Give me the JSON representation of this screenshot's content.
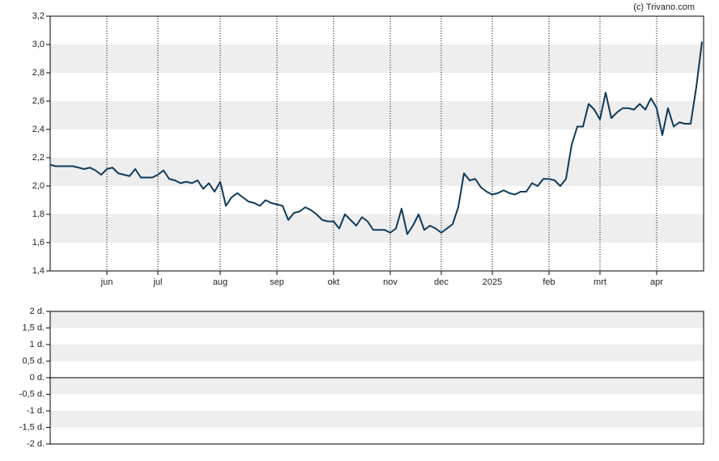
{
  "chart_data": [
    {
      "type": "line",
      "source": "(c) Trivano.com",
      "categories": [
        null,
        null,
        null,
        null,
        null,
        null,
        null,
        null,
        null,
        null,
        "jun",
        null,
        null,
        null,
        null,
        null,
        null,
        null,
        null,
        "jul",
        null,
        null,
        null,
        null,
        null,
        null,
        null,
        null,
        null,
        null,
        "aug",
        null,
        null,
        null,
        null,
        null,
        null,
        null,
        null,
        null,
        "sep",
        null,
        null,
        null,
        null,
        null,
        null,
        null,
        null,
        null,
        "okt",
        null,
        null,
        null,
        null,
        null,
        null,
        null,
        null,
        null,
        "nov",
        null,
        null,
        null,
        null,
        null,
        null,
        null,
        null,
        "dec",
        null,
        null,
        null,
        null,
        null,
        null,
        null,
        null,
        "2025",
        null,
        null,
        null,
        null,
        null,
        null,
        null,
        null,
        null,
        "feb",
        null,
        null,
        null,
        null,
        null,
        null,
        null,
        null,
        "mrt",
        null,
        null,
        null,
        null,
        null,
        null,
        null,
        null,
        null,
        "apr",
        null,
        null,
        null,
        null,
        null,
        null,
        null,
        null
      ],
      "series": [
        {
          "color": "#0f3a5a",
          "values": [
            2.15,
            2.14,
            2.14,
            2.14,
            2.14,
            2.13,
            2.12,
            2.13,
            2.11,
            2.08,
            2.12,
            2.13,
            2.09,
            2.08,
            2.07,
            2.12,
            2.06,
            2.06,
            2.06,
            2.08,
            2.11,
            2.05,
            2.04,
            2.02,
            2.03,
            2.02,
            2.04,
            1.98,
            2.02,
            1.96,
            2.03,
            1.86,
            1.92,
            1.95,
            1.92,
            1.89,
            1.88,
            1.86,
            1.9,
            1.88,
            1.87,
            1.86,
            1.76,
            1.81,
            1.82,
            1.85,
            1.83,
            1.8,
            1.76,
            1.75,
            1.75,
            1.7,
            1.8,
            1.76,
            1.72,
            1.78,
            1.75,
            1.69,
            1.69,
            1.69,
            1.67,
            1.7,
            1.84,
            1.66,
            1.72,
            1.8,
            1.69,
            1.72,
            1.7,
            1.67,
            1.7,
            1.73,
            1.85,
            2.09,
            2.04,
            2.05,
            1.99,
            1.96,
            1.94,
            1.95,
            1.97,
            1.95,
            1.94,
            1.96,
            1.96,
            2.02,
            2.0,
            2.05,
            2.05,
            2.04,
            2.0,
            2.05,
            2.29,
            2.42,
            2.42,
            2.58,
            2.54,
            2.47,
            2.66,
            2.48,
            2.52,
            2.55,
            2.55,
            2.54,
            2.58,
            2.54,
            2.62,
            2.55,
            2.36,
            2.55,
            2.42,
            2.45,
            2.44,
            2.44,
            2.7,
            3.02
          ]
        }
      ],
      "ylim": [
        1.4,
        3.2
      ],
      "yticks": [
        {
          "value": 1.4,
          "label": "1,4"
        },
        {
          "value": 1.6,
          "label": "1,6"
        },
        {
          "value": 1.8,
          "label": "1,8"
        },
        {
          "value": 2.0,
          "label": "2,0"
        },
        {
          "value": 2.2,
          "label": "2,2"
        },
        {
          "value": 2.4,
          "label": "2,4"
        },
        {
          "value": 2.6,
          "label": "2,6"
        },
        {
          "value": 2.8,
          "label": "2,8"
        },
        {
          "value": 3.0,
          "label": "3,0"
        },
        {
          "value": 3.2,
          "label": "3,2"
        }
      ],
      "bands": true,
      "xgrid": true
    },
    {
      "type": "line",
      "series": [],
      "ylim": [
        -2,
        2
      ],
      "yticks": [
        {
          "value": -2,
          "label": "-2 d."
        },
        {
          "value": -1.5,
          "label": "-1,5 d."
        },
        {
          "value": -1,
          "label": "-1 d."
        },
        {
          "value": -0.5,
          "label": "-0,5 d."
        },
        {
          "value": 0,
          "label": "0 d."
        },
        {
          "value": 0.5,
          "label": "0,5 d."
        },
        {
          "value": 1,
          "label": "1 d."
        },
        {
          "value": 1.5,
          "label": "1,5 d."
        },
        {
          "value": 2,
          "label": "2 d."
        }
      ],
      "bands": true,
      "zero_line": true
    }
  ]
}
